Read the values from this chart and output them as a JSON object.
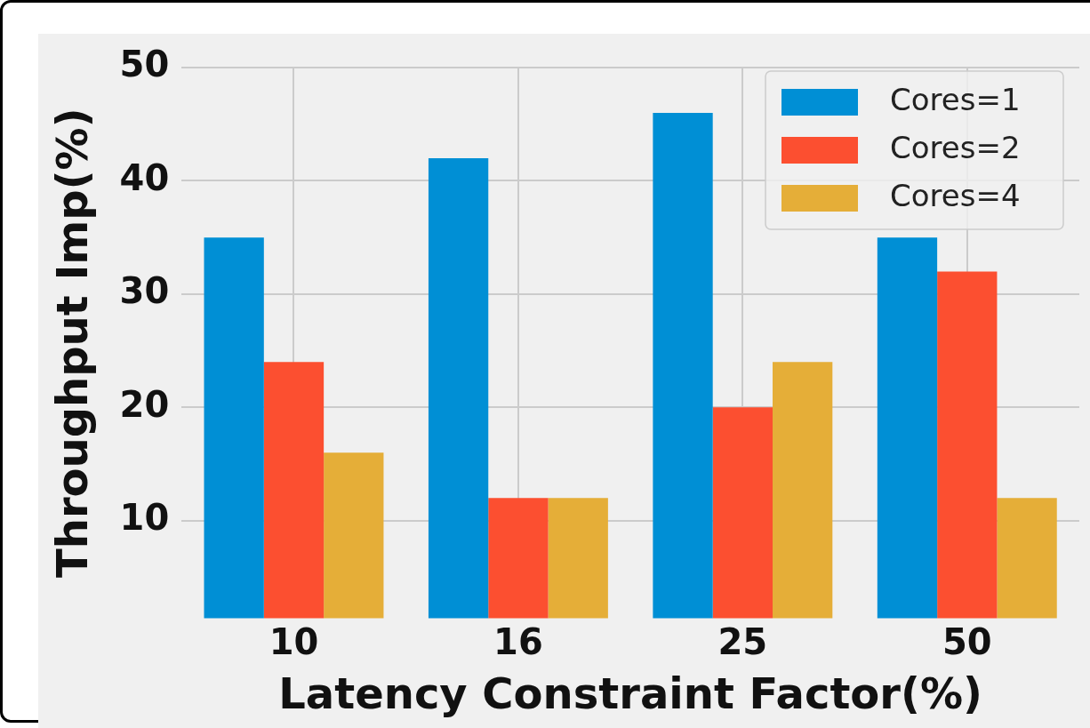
{
  "chart_data": {
    "type": "bar",
    "xlabel": "Latency Constraint Factor(%)",
    "ylabel": "Throughput Imp(%)",
    "categories": [
      "10",
      "16",
      "25",
      "50"
    ],
    "series": [
      {
        "name": "Cores=1",
        "color": "#008fd5",
        "values": [
          35,
          42,
          46,
          35
        ]
      },
      {
        "name": "Cores=2",
        "color": "#fc4f30",
        "values": [
          24,
          12,
          20,
          32
        ]
      },
      {
        "name": "Cores=4",
        "color": "#e5ae38",
        "values": [
          16,
          12,
          24,
          12
        ]
      }
    ],
    "ylim": [
      1.4,
      50
    ],
    "yticks": [
      10,
      20,
      30,
      40,
      50
    ],
    "grid": true,
    "legend": "top right"
  }
}
